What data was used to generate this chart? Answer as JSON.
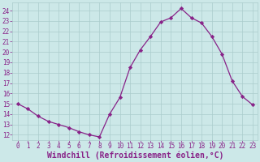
{
  "x": [
    0,
    1,
    2,
    3,
    4,
    5,
    6,
    7,
    8,
    9,
    10,
    11,
    12,
    13,
    14,
    15,
    16,
    17,
    18,
    19,
    20,
    21,
    22,
    23
  ],
  "y": [
    15.0,
    14.5,
    13.8,
    13.3,
    13.0,
    12.7,
    12.3,
    12.0,
    11.8,
    14.0,
    15.6,
    18.5,
    20.2,
    21.5,
    22.9,
    23.3,
    24.2,
    23.3,
    22.8,
    21.5,
    19.8,
    17.2,
    15.7,
    14.9
  ],
  "line_color": "#882288",
  "marker": "D",
  "marker_size": 2.2,
  "bg_color": "#cce8e8",
  "grid_color": "#aacccc",
  "xlabel": "Windchill (Refroidissement éolien,°C)",
  "xlabel_color": "#882288",
  "ylabel_ticks": [
    12,
    13,
    14,
    15,
    16,
    17,
    18,
    19,
    20,
    21,
    22,
    23,
    24
  ],
  "ylim": [
    11.5,
    24.8
  ],
  "xlim": [
    -0.5,
    23.5
  ],
  "tick_color": "#882288",
  "tick_fontsize": 5.5,
  "xlabel_fontsize": 7.0,
  "linewidth": 0.9
}
